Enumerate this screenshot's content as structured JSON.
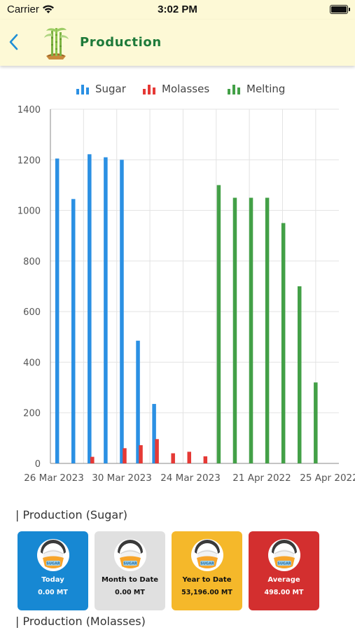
{
  "status_bar": {
    "carrier": "Carrier",
    "time": "3:02 PM"
  },
  "header": {
    "title": "Production"
  },
  "chart_data": {
    "type": "bar",
    "ylim": [
      0,
      1400
    ],
    "yticks": [
      0,
      200,
      400,
      600,
      800,
      1000,
      1200,
      1400
    ],
    "grid": true,
    "legend_position": "top-center",
    "x_tick_labels": [
      "26 Mar 2023",
      "30 Mar 2023",
      "24 Mar 2023",
      "21 Apr 2022",
      "25 Apr 2022"
    ],
    "series": [
      {
        "name": "Sugar",
        "color": "#2b90e3",
        "values": [
          1205,
          1045,
          1222,
          1210,
          1200,
          485,
          235,
          0,
          0,
          0,
          0,
          0,
          0,
          0,
          0,
          0,
          0
        ]
      },
      {
        "name": "Molasses",
        "color": "#e53935",
        "values": [
          0,
          0,
          26,
          0,
          60,
          72,
          96,
          40,
          46,
          28,
          0,
          0,
          0,
          0,
          0,
          0,
          0
        ]
      },
      {
        "name": "Melting",
        "color": "#43a047",
        "values": [
          0,
          0,
          0,
          0,
          0,
          0,
          0,
          0,
          0,
          0,
          1100,
          1050,
          1050,
          1050,
          950,
          700,
          320
        ]
      }
    ]
  },
  "sections": {
    "sugar": "| Production (Sugar)",
    "molasses": "| Production (Molasses)"
  },
  "cards": [
    {
      "label": "Today",
      "value": "0.00 MT",
      "bg": "#1788d3",
      "fg": "#ffffff"
    },
    {
      "label": "Month to Date",
      "value": "0.00 MT",
      "bg": "#e0e0e0",
      "fg": "#111111"
    },
    {
      "label": "Year to Date",
      "value": "53,196.00 MT",
      "bg": "#f5b82a",
      "fg": "#111111"
    },
    {
      "label": "Average",
      "value": "498.00 MT",
      "bg": "#d32f2f",
      "fg": "#ffffff"
    }
  ],
  "icons": {
    "back": "chevron-left-icon",
    "logo": "sugarcane-logo-icon",
    "card": "sugar-bag-icon"
  },
  "sugar_bag_label": "SUGAR"
}
